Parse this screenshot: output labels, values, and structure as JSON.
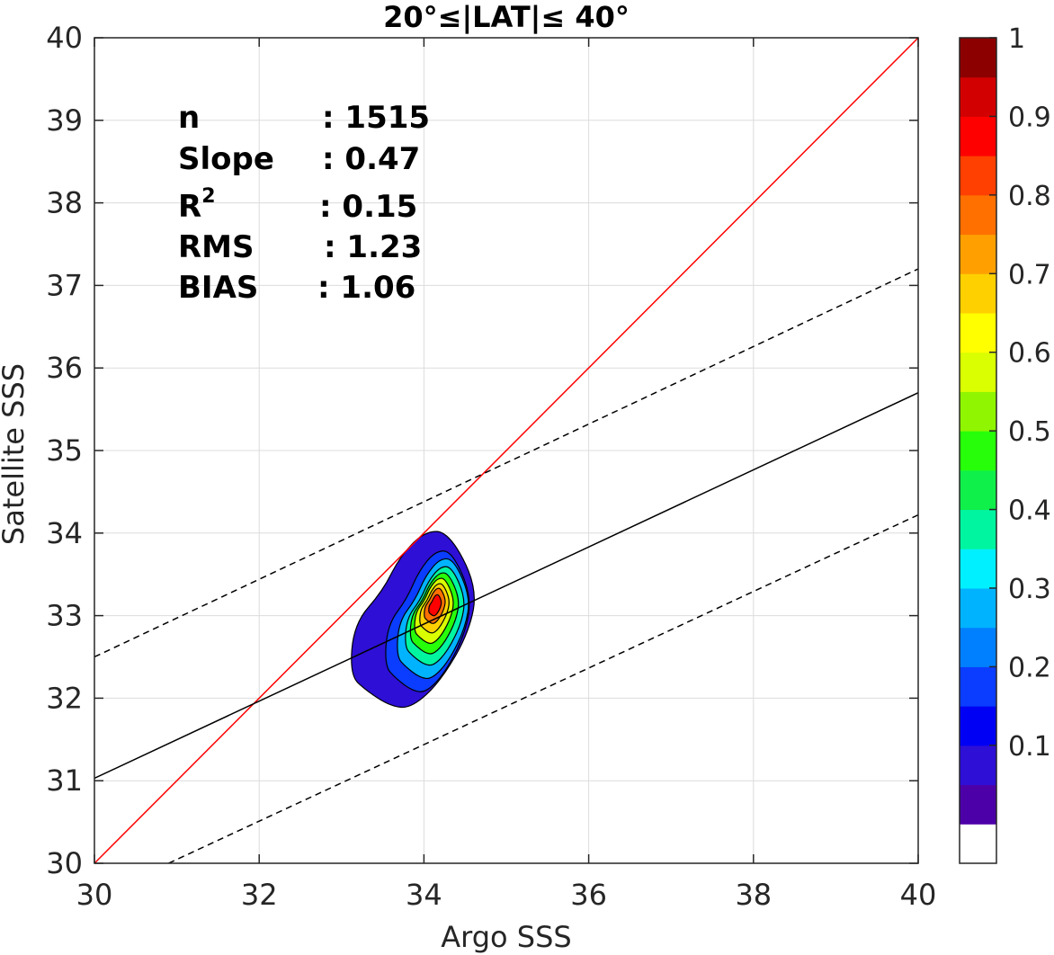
{
  "chart_data": {
    "type": "contour-scatter",
    "title": "20°≤|LAT|≤ 40°",
    "xlabel": "Argo SSS",
    "ylabel": "Satellite SSS",
    "xlim": [
      30,
      40
    ],
    "ylim": [
      30,
      40
    ],
    "xticks": [
      "30",
      "32",
      "34",
      "36",
      "38",
      "40"
    ],
    "yticks": [
      "30",
      "31",
      "32",
      "33",
      "34",
      "35",
      "36",
      "37",
      "38",
      "39",
      "40"
    ],
    "grid": true,
    "stats": [
      {
        "label": "n",
        "value": ": 1515"
      },
      {
        "label": "Slope",
        "value": ": 0.47"
      },
      {
        "label": "R",
        "sup": "2",
        "value": ": 0.15"
      },
      {
        "label": "RMS",
        "value": ": 1.23"
      },
      {
        "label": "BIAS",
        "value": ": 1.06"
      }
    ],
    "lines": [
      {
        "kind": "one-to-one",
        "color": "#ff0000",
        "style": "solid",
        "x": [
          30,
          40
        ],
        "y": [
          30,
          40
        ]
      },
      {
        "kind": "regression",
        "color": "#000000",
        "style": "solid",
        "x": [
          30,
          40
        ],
        "y": [
          31.03,
          35.7
        ]
      },
      {
        "kind": "upper-bound",
        "color": "#000000",
        "style": "dashed",
        "x": [
          30,
          40
        ],
        "y": [
          32.5,
          37.2
        ]
      },
      {
        "kind": "lower-bound",
        "color": "#000000",
        "style": "dashed",
        "x": [
          30.9,
          40
        ],
        "y": [
          30,
          34.22
        ]
      }
    ],
    "density": {
      "center": [
        34.08,
        33.05
      ],
      "levels": [
        0.05,
        0.15,
        0.25,
        0.35,
        0.45,
        0.55,
        0.65,
        0.75,
        0.85
      ],
      "outer_contour": [
        [
          33.3,
          32.09
        ],
        [
          33.1,
          32.28
        ],
        [
          33.15,
          32.9
        ],
        [
          33.5,
          33.3
        ],
        [
          33.7,
          33.7
        ],
        [
          34.0,
          34.02
        ],
        [
          34.3,
          34.02
        ],
        [
          34.65,
          33.35
        ],
        [
          34.55,
          32.8
        ],
        [
          34.2,
          32.2
        ],
        [
          33.85,
          31.88
        ],
        [
          33.6,
          31.9
        ]
      ]
    },
    "colorbar": {
      "ticks": [
        "0.1",
        "0.2",
        "0.3",
        "0.4",
        "0.5",
        "0.6",
        "0.7",
        "0.8",
        "0.9",
        "1"
      ],
      "colors": [
        "#ffffff",
        "#4c00a8",
        "#2d0fd6",
        "#0000f5",
        "#0a3dff",
        "#0080ff",
        "#00b3ff",
        "#00f0ff",
        "#00f5a0",
        "#0ff04a",
        "#27ff0a",
        "#8ff500",
        "#d9ff00",
        "#ffff00",
        "#ffd000",
        "#ffa000",
        "#ff7000",
        "#ff4000",
        "#ff0000",
        "#d20000",
        "#8c0000"
      ]
    }
  }
}
